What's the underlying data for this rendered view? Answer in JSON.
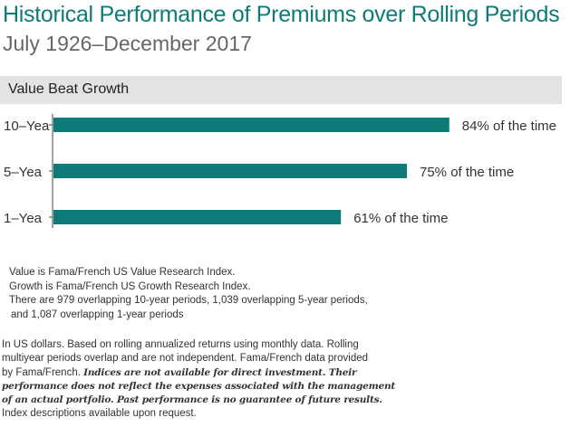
{
  "header": {
    "title": "Historical Performance of Premiums over Rolling Periods",
    "subtitle": "July 1926–December 2017"
  },
  "section": {
    "label": "Value Beat Growth"
  },
  "colors": {
    "bar": "#0e7b78",
    "title": "#0e7b78",
    "band": "#e3e3e3"
  },
  "chart_data": {
    "type": "bar",
    "orientation": "horizontal",
    "title": "Value Beat Growth",
    "xlabel": "",
    "ylabel": "",
    "xlim": [
      0,
      100
    ],
    "categories": [
      "10–Yea",
      "5–Yea",
      "1–Yea"
    ],
    "values": [
      84,
      75,
      61
    ],
    "data_labels": [
      "84% of the time",
      "75% of the time",
      "61% of the time"
    ],
    "unit": "% of the time",
    "grid": false
  },
  "notes": [
    "Value is Fama/French US Value Research Index.",
    "Growth is Fama/French US Growth Research Index.",
    "There are 979 overlapping 10-year periods, 1,039 overlapping 5-year periods,",
    "and 1,087 overlapping 1-year periods"
  ],
  "disclaimer": {
    "line1": "In US dollars. Based on rolling annualized returns using monthly data. Rolling",
    "line2": "multiyear periods overlap and are not independent. Fama/French data provided",
    "line3_regular": "by Fama/French.",
    "line3_bold": "Indices are not available for direct investment. Their",
    "line4_bold": "performance does not reflect the expenses associated with the management",
    "line5_bold": "of an actual portfolio. Past performance is no guarantee of future results.",
    "line6": "Index descriptions available upon request."
  }
}
